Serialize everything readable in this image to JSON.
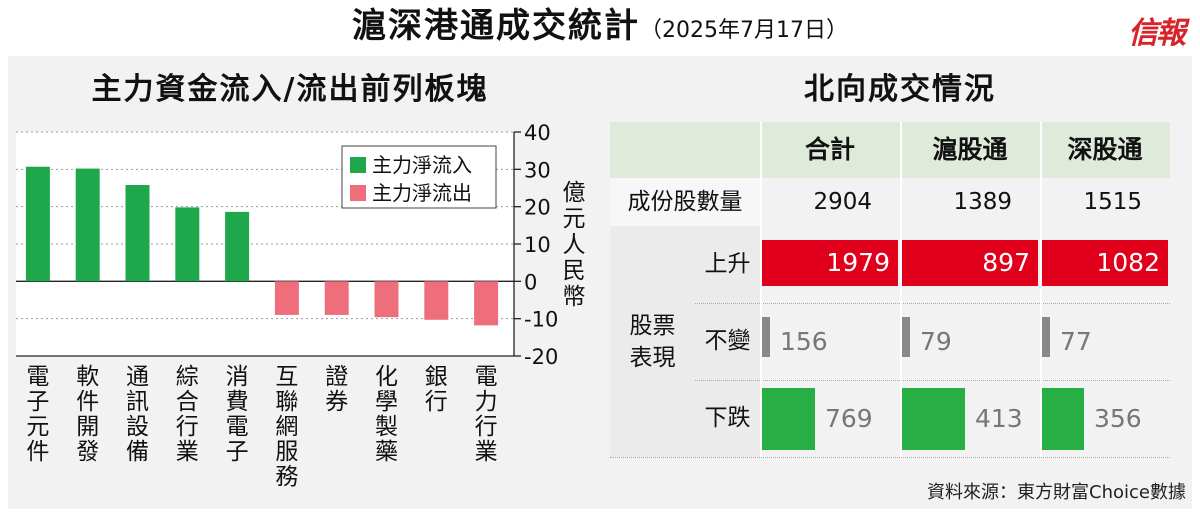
{
  "title": "滬深港通成交統計",
  "date": "（2025年7月17日）",
  "logo": "信報",
  "source": "資料來源：東方財富Choice數據",
  "left_chart_title": "主力資金流入/流出前列板塊",
  "right_table_title": "北向成交情況",
  "colors": {
    "inflow": "#1fa74b",
    "outflow": "#ee6f7b",
    "up": "#e0001b",
    "flat": "#888888",
    "down": "#27ae45"
  },
  "chart_data": {
    "type": "bar",
    "title": "主力資金流入/流出前列板塊",
    "ylabel": "億元人民幣",
    "ylim": [
      -20,
      40
    ],
    "yticks": [
      40,
      30,
      20,
      10,
      0,
      -10,
      -20
    ],
    "grid": true,
    "legend_position": "top-right",
    "categories": [
      "電子元件",
      "軟件開發",
      "通訊設備",
      "綜合行業",
      "消費電子",
      "互聯網服務",
      "證券",
      "化學製藥",
      "銀行",
      "電力行業"
    ],
    "series": [
      {
        "name": "主力淨流入",
        "values": [
          30.7,
          30.2,
          25.8,
          19.8,
          18.6,
          null,
          null,
          null,
          null,
          null
        ]
      },
      {
        "name": "主力淨流出",
        "values": [
          null,
          null,
          null,
          null,
          null,
          -9.0,
          -9.0,
          -9.6,
          -10.3,
          -11.8
        ]
      }
    ]
  },
  "table": {
    "columns": [
      "合計",
      "滬股通",
      "深股通"
    ],
    "row_constituents": {
      "label": "成份股數量",
      "values": [
        "2904",
        "1389",
        "1515"
      ]
    },
    "group_label_1": "股票",
    "group_label_2": "表現",
    "rows": [
      {
        "label": "上升",
        "values": [
          "1979",
          "897",
          "1082"
        ],
        "fractions": [
          1.0,
          1.0,
          1.0
        ]
      },
      {
        "label": "不變",
        "values": [
          "156",
          "79",
          "77"
        ],
        "fractions": [
          0.08,
          0.09,
          0.07
        ]
      },
      {
        "label": "下跌",
        "values": [
          "769",
          "413",
          "356"
        ],
        "fractions": [
          0.39,
          0.46,
          0.33
        ]
      }
    ]
  }
}
